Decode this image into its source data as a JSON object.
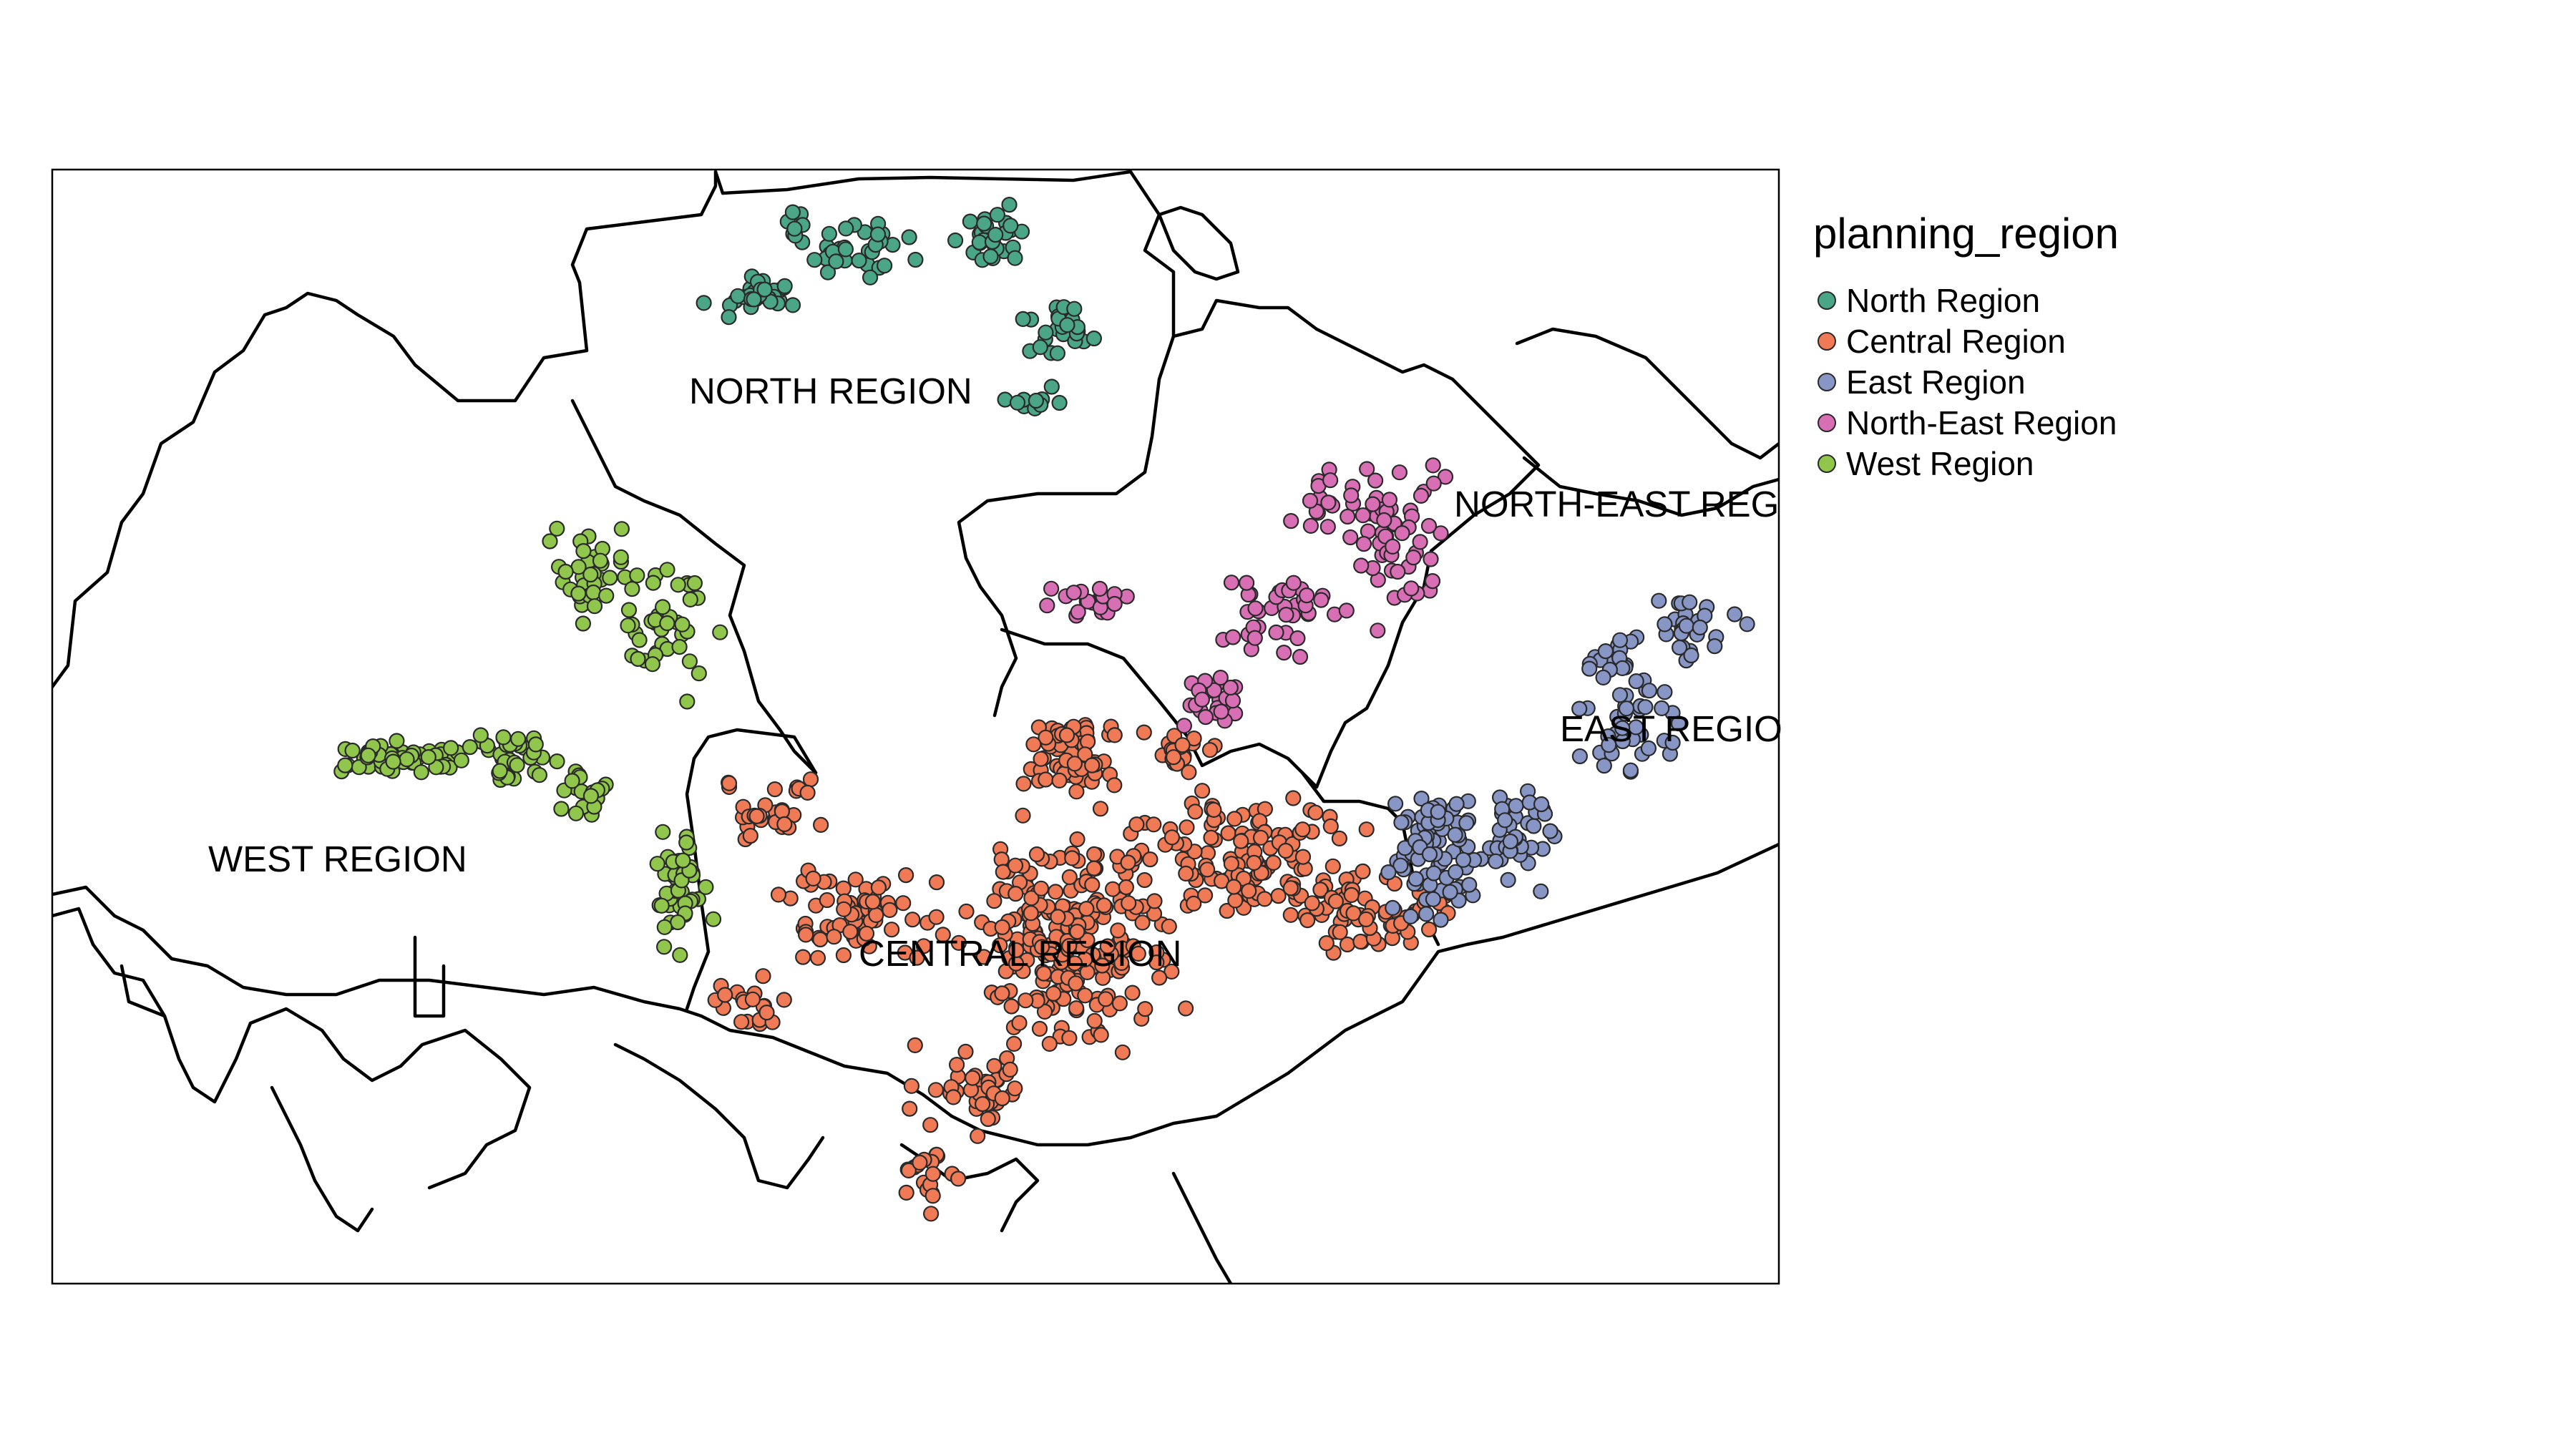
{
  "legend": {
    "title": "planning_region",
    "items": [
      {
        "label": "North Region",
        "color": "#4ba688"
      },
      {
        "label": "Central Region",
        "color": "#ef7a55"
      },
      {
        "label": "East Region",
        "color": "#8896c6"
      },
      {
        "label": "North-East Region",
        "color": "#d86fb5"
      },
      {
        "label": "West Region",
        "color": "#8fc64b"
      }
    ]
  },
  "map": {
    "region_labels": [
      "NORTH REGION",
      "NORTH-EAST REG",
      "EAST REGIO",
      "WEST REGION",
      "CENTRAL REGION"
    ]
  }
}
